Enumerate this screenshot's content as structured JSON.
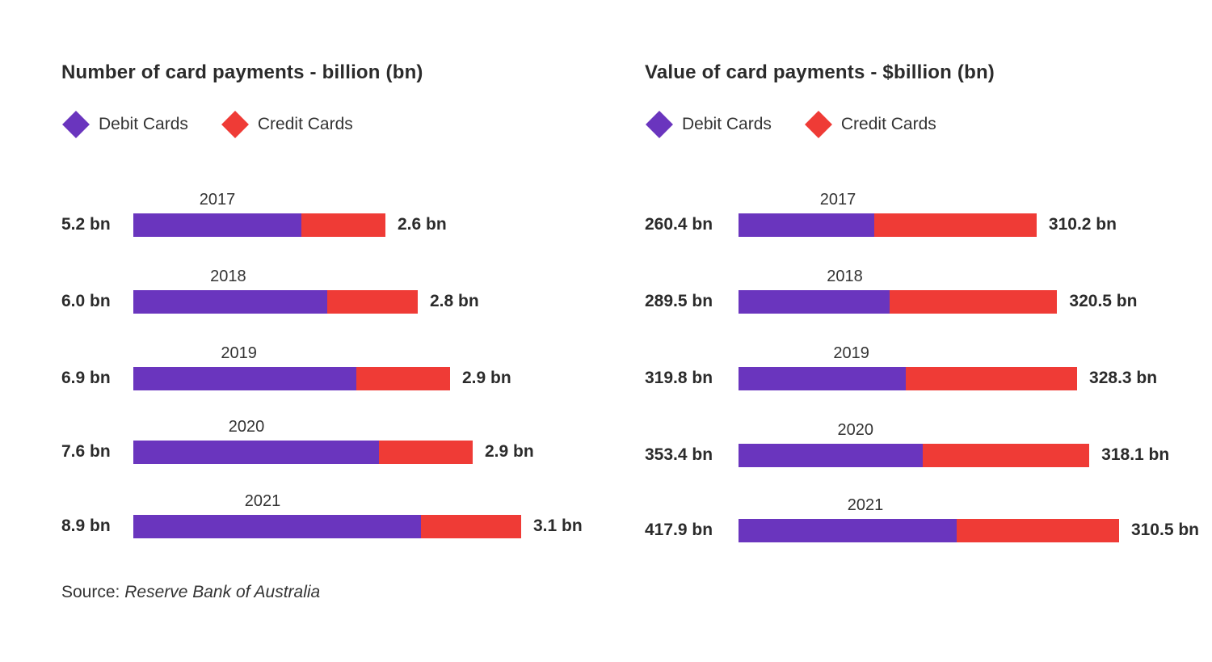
{
  "colors": {
    "debit": "#6a35be",
    "credit": "#ef3b36"
  },
  "legend": {
    "debit_label": "Debit Cards",
    "credit_label": "Credit Cards",
    "debit_icon": "diamond-icon",
    "credit_icon": "diamond-icon"
  },
  "source": {
    "prefix": "Source:",
    "name": "Reserve Bank of Australia"
  },
  "chart_data": [
    {
      "type": "bar",
      "orientation": "horizontal",
      "stacked": true,
      "title": "Number of card payments - billion (bn)",
      "categories": [
        "2017",
        "2018",
        "2019",
        "2020",
        "2021"
      ],
      "series": [
        {
          "name": "Debit Cards",
          "values": [
            5.2,
            6.0,
            6.9,
            7.6,
            8.9
          ]
        },
        {
          "name": "Credit Cards",
          "values": [
            2.6,
            2.8,
            2.9,
            2.9,
            3.1
          ]
        }
      ],
      "left_labels": [
        "5.2 bn",
        "6.0 bn",
        "6.9 bn",
        "7.6 bn",
        "8.9 bn"
      ],
      "right_labels": [
        "2.6 bn",
        "2.8 bn",
        "2.9 bn",
        "2.9 bn",
        "3.1 bn"
      ],
      "xlim": [
        0,
        12
      ]
    },
    {
      "type": "bar",
      "orientation": "horizontal",
      "stacked": true,
      "title": "Value of card payments - $billion (bn)",
      "categories": [
        "2017",
        "2018",
        "2019",
        "2020",
        "2021"
      ],
      "series": [
        {
          "name": "Debit Cards",
          "values": [
            260.4,
            289.5,
            319.8,
            353.4,
            417.9
          ]
        },
        {
          "name": "Credit Cards",
          "values": [
            310.2,
            320.5,
            328.3,
            318.1,
            310.5
          ]
        }
      ],
      "left_labels": [
        "260.4 bn",
        "289.5 bn",
        "319.8 bn",
        "353.4 bn",
        "417.9 bn"
      ],
      "right_labels": [
        "310.2 bn",
        "320.5 bn",
        "328.3 bn",
        "318.1 bn",
        "310.5 bn"
      ],
      "xlim": [
        0,
        730
      ]
    }
  ]
}
